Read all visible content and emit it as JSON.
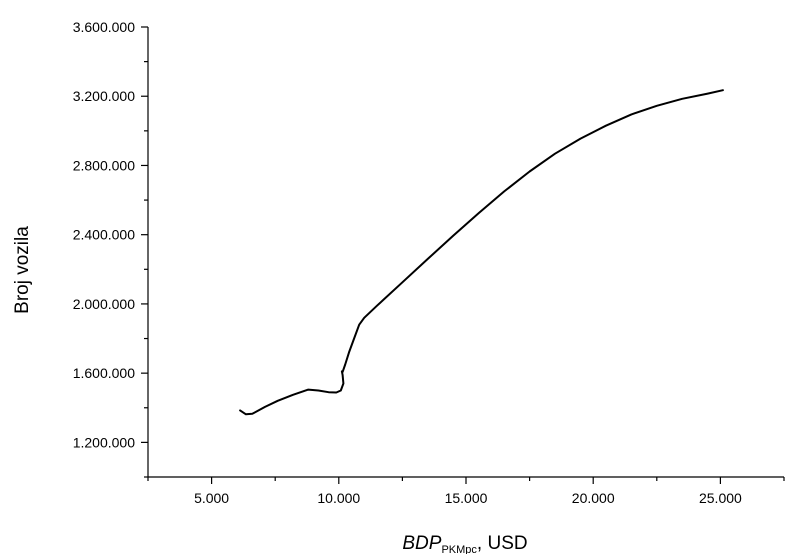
{
  "chart_data": {
    "type": "line",
    "title": "",
    "xlabel": {
      "main": "BDP",
      "subscript": "PKMpc",
      "suffix": ", USD"
    },
    "ylabel": "Broj vozila",
    "xlim": [
      2500,
      27500
    ],
    "ylim": [
      1000000,
      3600000
    ],
    "x_ticks": [
      5000,
      10000,
      15000,
      20000,
      25000
    ],
    "x_tick_labels": [
      "5.000",
      "10.000",
      "15.000",
      "20.000",
      "25.000"
    ],
    "y_ticks": [
      1200000,
      1600000,
      2000000,
      2400000,
      2800000,
      3200000,
      3600000
    ],
    "y_tick_labels": [
      "1.200.000",
      "1.600.000",
      "2.000.000",
      "2.400.000",
      "2.800.000",
      "3.200.000",
      "3.600.000"
    ],
    "grid": false,
    "series": [
      {
        "x": [
          6120,
          6350,
          6600,
          7100,
          7600,
          8200,
          8800,
          9200,
          9600,
          9900,
          10080,
          10180,
          10150,
          10120,
          10150,
          10250,
          10400,
          10600,
          10800,
          11000,
          11500,
          12500,
          13500,
          14500,
          15500,
          16500,
          17500,
          18500,
          19500,
          20500,
          21500,
          22500,
          23500,
          24500,
          25100
        ],
        "y": [
          1385000,
          1362000,
          1365000,
          1405000,
          1440000,
          1475000,
          1505000,
          1500000,
          1490000,
          1488000,
          1500000,
          1540000,
          1590000,
          1610000,
          1607000,
          1650000,
          1720000,
          1800000,
          1880000,
          1920000,
          1990000,
          2125000,
          2260000,
          2395000,
          2525000,
          2650000,
          2765000,
          2868000,
          2955000,
          3030000,
          3095000,
          3145000,
          3185000,
          3215000,
          3235000
        ]
      }
    ]
  }
}
